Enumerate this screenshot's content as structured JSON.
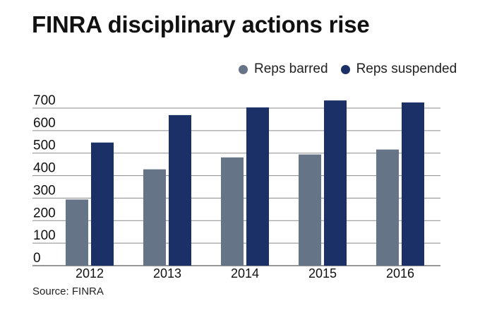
{
  "colors": {
    "barred": "#667487",
    "suspended": "#1a3066",
    "grid": "#8a8a8a",
    "axis_text": "#111111"
  },
  "chart_data": {
    "type": "bar",
    "title": "FINRA disciplinary actions rise",
    "xlabel": "",
    "ylabel": "",
    "categories": [
      "2012",
      "2013",
      "2014",
      "2015",
      "2016"
    ],
    "series": [
      {
        "name": "Reps barred",
        "color": "#667487",
        "values": [
          294,
          428,
          481,
          494,
          516
        ]
      },
      {
        "name": "Reps suspended",
        "color": "#1a3066",
        "values": [
          547,
          669,
          703,
          734,
          725
        ]
      }
    ],
    "ylim": [
      0,
      700
    ],
    "yticks": [
      0,
      100,
      200,
      300,
      400,
      500,
      600,
      700
    ],
    "ytick_labels": [
      "0",
      "100",
      "200",
      "300",
      "400",
      "500",
      "600",
      "700"
    ],
    "grid": true,
    "legend_position": "top-right",
    "source": "Source: FINRA"
  }
}
